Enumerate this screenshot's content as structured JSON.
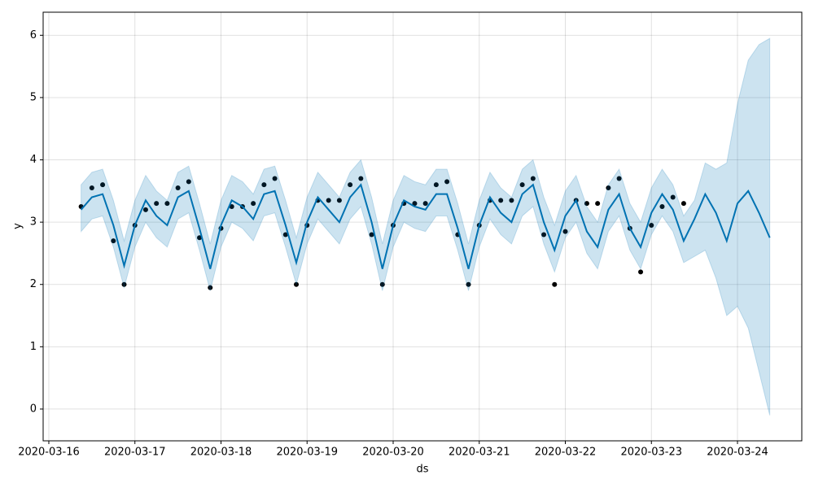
{
  "chart_data": {
    "type": "line",
    "xlabel": "ds",
    "ylabel": "y",
    "grid": true,
    "xlim": [
      -0.066,
      8.747
    ],
    "ylim": [
      -0.51,
      6.37
    ],
    "xticks": [
      {
        "value": 0,
        "label": "2020-03-16"
      },
      {
        "value": 1,
        "label": "2020-03-17"
      },
      {
        "value": 2,
        "label": "2020-03-18"
      },
      {
        "value": 3,
        "label": "2020-03-19"
      },
      {
        "value": 4,
        "label": "2020-03-20"
      },
      {
        "value": 5,
        "label": "2020-03-21"
      },
      {
        "value": 6,
        "label": "2020-03-22"
      },
      {
        "value": 7,
        "label": "2020-03-23"
      },
      {
        "value": 8,
        "label": "2020-03-24"
      }
    ],
    "yticks": [
      0,
      1,
      2,
      3,
      4,
      5,
      6
    ],
    "x": [
      0.375,
      0.5,
      0.625,
      0.75,
      0.875,
      1,
      1.125,
      1.25,
      1.375,
      1.5,
      1.625,
      1.75,
      1.875,
      2,
      2.125,
      2.25,
      2.375,
      2.5,
      2.625,
      2.75,
      2.875,
      3,
      3.125,
      3.25,
      3.375,
      3.5,
      3.625,
      3.75,
      3.875,
      4,
      4.125,
      4.25,
      4.375,
      4.5,
      4.625,
      4.75,
      4.875,
      5,
      5.125,
      5.25,
      5.375,
      5.5,
      5.625,
      5.75,
      5.875,
      6,
      6.125,
      6.25,
      6.375,
      6.5,
      6.625,
      6.75,
      6.875,
      7,
      7.125,
      7.25,
      7.375,
      7.5,
      7.625,
      7.75,
      7.875,
      8,
      8.125,
      8.25,
      8.375
    ],
    "series": [
      {
        "type": "scatter",
        "color": "#000000",
        "values": [
          3.25,
          3.55,
          3.6,
          2.7,
          2.0,
          2.95,
          3.2,
          3.3,
          3.3,
          3.55,
          3.65,
          2.75,
          1.95,
          2.9,
          3.25,
          3.25,
          3.3,
          3.6,
          3.7,
          2.8,
          2.0,
          2.95,
          3.35,
          3.35,
          3.35,
          3.6,
          3.7,
          2.8,
          2.0,
          2.95,
          3.3,
          3.3,
          3.3,
          3.6,
          3.65,
          2.8,
          2.0,
          2.95,
          3.35,
          3.35,
          3.35,
          3.6,
          3.7,
          2.8,
          2.0,
          2.85,
          3.35,
          3.3,
          3.3,
          3.55,
          3.7,
          2.9,
          2.2,
          2.95,
          3.25,
          3.4,
          3.3,
          null,
          null,
          null,
          null,
          null,
          null,
          null,
          null
        ]
      },
      {
        "type": "line",
        "color": "#0072B2",
        "values": [
          3.2,
          3.4,
          3.45,
          2.95,
          2.3,
          2.95,
          3.35,
          3.1,
          2.95,
          3.4,
          3.5,
          2.9,
          2.25,
          2.95,
          3.35,
          3.25,
          3.05,
          3.45,
          3.5,
          2.95,
          2.35,
          3.0,
          3.4,
          3.2,
          3.0,
          3.4,
          3.6,
          3.0,
          2.25,
          2.95,
          3.35,
          3.25,
          3.2,
          3.45,
          3.45,
          2.9,
          2.25,
          2.95,
          3.4,
          3.15,
          3.0,
          3.45,
          3.6,
          3.0,
          2.55,
          3.1,
          3.35,
          2.85,
          2.6,
          3.2,
          3.45,
          2.9,
          2.6,
          3.15,
          3.45,
          3.2,
          2.7,
          3.05,
          3.45,
          3.15,
          2.7,
          3.3,
          3.5,
          3.15,
          2.75
        ]
      },
      {
        "type": "band",
        "color": "#0072B2",
        "upper": [
          3.6,
          3.8,
          3.85,
          3.35,
          2.7,
          3.35,
          3.75,
          3.5,
          3.35,
          3.8,
          3.9,
          3.3,
          2.65,
          3.35,
          3.75,
          3.65,
          3.45,
          3.85,
          3.9,
          3.35,
          2.75,
          3.4,
          3.8,
          3.6,
          3.4,
          3.8,
          4.0,
          3.4,
          2.65,
          3.35,
          3.75,
          3.65,
          3.6,
          3.85,
          3.85,
          3.3,
          2.65,
          3.35,
          3.8,
          3.55,
          3.4,
          3.85,
          4.0,
          3.4,
          2.95,
          3.5,
          3.75,
          3.25,
          3.0,
          3.6,
          3.85,
          3.3,
          3.0,
          3.55,
          3.85,
          3.6,
          3.1,
          3.35,
          3.95,
          3.85,
          3.95,
          4.9,
          5.6,
          5.85,
          5.95
        ],
        "lower": [
          2.85,
          3.05,
          3.1,
          2.6,
          1.95,
          2.6,
          3.0,
          2.75,
          2.6,
          3.05,
          3.15,
          2.55,
          1.9,
          2.6,
          3.0,
          2.9,
          2.7,
          3.1,
          3.15,
          2.6,
          2.0,
          2.65,
          3.05,
          2.85,
          2.65,
          3.05,
          3.25,
          2.65,
          1.9,
          2.6,
          3.0,
          2.9,
          2.85,
          3.1,
          3.1,
          2.55,
          1.9,
          2.6,
          3.05,
          2.8,
          2.65,
          3.1,
          3.25,
          2.65,
          2.2,
          2.75,
          3.0,
          2.5,
          2.25,
          2.85,
          3.1,
          2.55,
          2.25,
          2.8,
          3.1,
          2.85,
          2.35,
          2.45,
          2.55,
          2.1,
          1.5,
          1.65,
          1.3,
          0.6,
          -0.1
        ]
      }
    ]
  }
}
